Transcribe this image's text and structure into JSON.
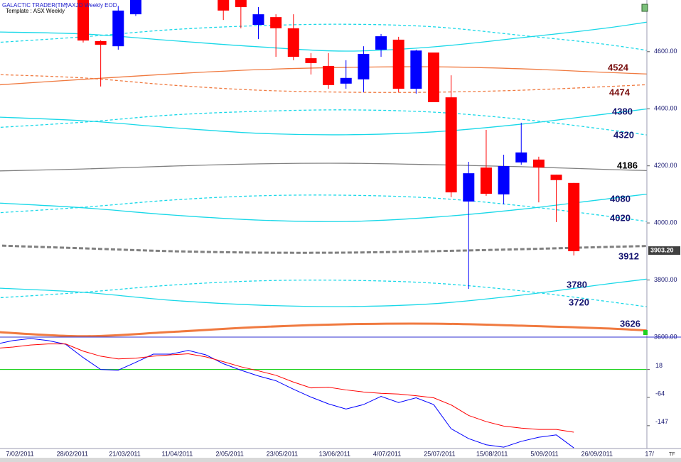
{
  "header": {
    "title": "GALACTIC TRADER(TM)",
    "symbol": "^AXJO Weekly EOD",
    "template": "Template : ASX Weekly"
  },
  "chart_data": [
    {
      "type": "candlestick",
      "open": [
        4800,
        4637,
        4619,
        4731,
        null,
        null,
        null,
        null,
        4790,
        4790,
        4694,
        4721,
        4682,
        4577,
        4550,
        4488,
        4503,
        4607,
        4642,
        4470,
        4597,
        4440,
        4075,
        4194,
        4100,
        4212,
        4222,
        4169,
        4140
      ],
      "high": [
        4810,
        4640,
        4760,
        4800,
        null,
        null,
        null,
        null,
        4800,
        4800,
        4756,
        4731,
        4731,
        4595,
        4595,
        4570,
        4619,
        4662,
        4652,
        4607,
        4597,
        4517,
        4214,
        4326,
        4239,
        4351,
        4232,
        4169,
        4140
      ],
      "low": [
        4632,
        4478,
        4607,
        4725,
        null,
        null,
        null,
        null,
        4711,
        4682,
        4644,
        4582,
        4570,
        4520,
        4470,
        4470,
        4458,
        4582,
        4458,
        4453,
        4423,
        4090,
        3769,
        4095,
        4065,
        4204,
        4072,
        4003,
        3886
      ],
      "close": [
        4639,
        4624,
        4744,
        4800,
        null,
        null,
        null,
        null,
        4744,
        4756,
        4731,
        4682,
        4582,
        4560,
        4483,
        4508,
        4592,
        4654,
        4470,
        4604,
        4423,
        4107,
        4174,
        4102,
        4199,
        4247,
        4194,
        4150,
        3901
      ],
      "up_color": "#0000ff",
      "down_color": "#ff0000",
      "ylim": [
        3600,
        4781
      ],
      "yticks": [
        {
          "value": 3600,
          "label": "3600.00"
        },
        {
          "value": 3800,
          "label": "3800.00"
        },
        {
          "value": 4000,
          "label": "4000.00"
        },
        {
          "value": 4200,
          "label": "4200.00"
        },
        {
          "value": 4400,
          "label": "4400.00"
        },
        {
          "value": 4600,
          "label": "4600.00"
        }
      ],
      "last_price": {
        "value": 3903.2,
        "label": "3903.20"
      },
      "curves": [
        {
          "color": "#19d8e8",
          "dash": false,
          "values": [
            4669,
            4662,
            4639,
            4617,
            4602,
            4617,
            4649,
            4684,
            4731
          ]
        },
        {
          "color": "#19d8e8",
          "dash": true,
          "values": [
            4632,
            4652,
            4677,
            4691,
            4696,
            4687,
            4657,
            4624,
            4577
          ]
        },
        {
          "color": "#f07a40",
          "dash": false,
          "values": [
            4483,
            4503,
            4522,
            4537,
            4545,
            4547,
            4540,
            4527,
            4515
          ],
          "label": 4524,
          "label_color": "#7a1010"
        },
        {
          "color": "#f07a40",
          "dash": true,
          "values": [
            4520,
            4508,
            4483,
            4465,
            4458,
            4458,
            4465,
            4478,
            4493
          ],
          "label": 4474,
          "label_color": "#7a1010"
        },
        {
          "color": "#19d8e8",
          "dash": false,
          "values": [
            4371,
            4358,
            4334,
            4314,
            4309,
            4319,
            4346,
            4383,
            4421
          ],
          "label": 4380,
          "label_color": "#141470"
        },
        {
          "color": "#19d8e8",
          "dash": true,
          "values": [
            4334,
            4353,
            4378,
            4391,
            4396,
            4388,
            4363,
            4326,
            4284
          ],
          "label": 4320,
          "label_color": "#141470"
        },
        {
          "color": "#808080",
          "dash": false,
          "values": [
            4182,
            4189,
            4199,
            4207,
            4209,
            4204,
            4197,
            4187,
            4179
          ],
          "label": 4186,
          "label_color": "#000000"
        },
        {
          "color": "#19d8e8",
          "dash": false,
          "values": [
            4070,
            4053,
            4028,
            4010,
            4005,
            4020,
            4048,
            4085,
            4122
          ],
          "label": 4080,
          "label_color": "#141470"
        },
        {
          "color": "#19d8e8",
          "dash": true,
          "values": [
            4035,
            4055,
            4080,
            4095,
            4097,
            4087,
            4060,
            4023,
            3981
          ],
          "label": 4020,
          "label_color": "#141470"
        },
        {
          "color": "#808080",
          "dash": true,
          "thick": true,
          "values": [
            3921,
            3911,
            3901,
            3896,
            3896,
            3901,
            3908,
            3916,
            3923
          ],
          "label": 3912,
          "label_color": "#141470"
        },
        {
          "color": "#19d8e8",
          "dash": false,
          "values": [
            3772,
            3757,
            3729,
            3712,
            3707,
            3717,
            3747,
            3787,
            3824
          ],
          "label": 3780,
          "label_color": "#141470"
        },
        {
          "color": "#19d8e8",
          "dash": true,
          "values": [
            3737,
            3757,
            3782,
            3797,
            3799,
            3789,
            3762,
            3724,
            3682
          ],
          "label": 3720,
          "label_color": "#141470"
        },
        {
          "color": "#f07a40",
          "dash": false,
          "thick": true,
          "values": [
            3618,
            3603,
            3618,
            3635,
            3645,
            3647,
            3640,
            3630,
            3613
          ],
          "label": 3626,
          "label_color": "#141470"
        }
      ],
      "x_labels": [
        "7/02/2011",
        "28/02/2011",
        "21/03/2011",
        "11/04/2011",
        "2/05/2011",
        "23/05/2011",
        "13/06/2011",
        "4/07/2011",
        "25/07/2011",
        "15/08/2011",
        "5/09/2011",
        "26/09/2011",
        "17/"
      ]
    },
    {
      "type": "line",
      "series": [
        {
          "color": "#0000ff",
          "values": [
            92,
            103,
            109,
            103,
            92,
            53,
            18,
            16,
            39,
            63,
            63,
            74,
            61,
            35,
            16,
            -1,
            -15,
            -40,
            -63,
            -83,
            -98,
            -85,
            -61,
            -79,
            -65,
            -85,
            -156,
            -185,
            -203,
            -210,
            -193,
            -181,
            -174,
            -212
          ]
        },
        {
          "color": "#ff0000",
          "values": [
            80,
            84,
            90,
            93,
            93,
            72,
            57,
            49,
            51,
            57,
            61,
            64,
            55,
            41,
            26,
            14,
            1,
            -19,
            -36,
            -34,
            -42,
            -48,
            -52,
            -54,
            -59,
            -65,
            -86,
            -117,
            -135,
            -148,
            -154,
            -158,
            -158,
            -166
          ]
        }
      ],
      "ylim": [
        -214,
        111
      ],
      "yticks": [
        18,
        -64,
        -147
      ],
      "signal_level": 18,
      "signal_color": "#00cc00"
    }
  ],
  "footer": {
    "corner": "TF"
  }
}
